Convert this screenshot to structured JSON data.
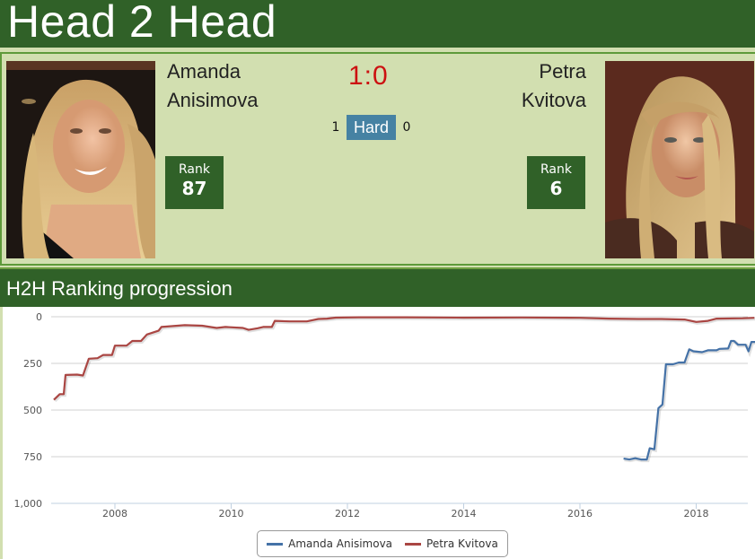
{
  "header": {
    "title": "Head 2 Head"
  },
  "h2h": {
    "player1": {
      "first": "Amanda",
      "last": "Anisimova",
      "rank_label": "Rank",
      "rank": "87",
      "surface_wins": "1",
      "photo": "player-photo-anisimova"
    },
    "player2": {
      "first": "Petra",
      "last": "Kvitova",
      "rank_label": "Rank",
      "rank": "6",
      "surface_wins": "0",
      "photo": "player-photo-kvitova"
    },
    "score": "1:0",
    "surface": "Hard"
  },
  "section": {
    "title": "H2H Ranking progression"
  },
  "colors": {
    "brand_green": "#306128",
    "panel_bg": "#d2dfb0",
    "score_red": "#cc1111",
    "surface_blue": "#4682a3",
    "series1": "#4572a7",
    "series2": "#aa4643"
  },
  "chart_data": {
    "type": "line",
    "title": "H2H Ranking progression",
    "xlabel": "",
    "ylabel": "",
    "y_reversed": true,
    "ylim": [
      0,
      1000
    ],
    "y_ticks": [
      "0",
      "250",
      "500",
      "750",
      "1,000"
    ],
    "x_ticks": [
      "2008",
      "2010",
      "2012",
      "2014",
      "2016",
      "2018"
    ],
    "grid": true,
    "legend_position": "bottom-center",
    "series": [
      {
        "name": "Amanda Anisimova",
        "color": "#4572a7",
        "points": [
          [
            2016.75,
            760
          ],
          [
            2016.85,
            765
          ],
          [
            2016.95,
            758
          ],
          [
            2017.05,
            765
          ],
          [
            2017.15,
            765
          ],
          [
            2017.2,
            705
          ],
          [
            2017.28,
            710
          ],
          [
            2017.35,
            490
          ],
          [
            2017.42,
            470
          ],
          [
            2017.48,
            255
          ],
          [
            2017.6,
            255
          ],
          [
            2017.7,
            245
          ],
          [
            2017.8,
            245
          ],
          [
            2017.88,
            175
          ],
          [
            2017.95,
            185
          ],
          [
            2018.1,
            190
          ],
          [
            2018.2,
            180
          ],
          [
            2018.35,
            180
          ],
          [
            2018.4,
            172
          ],
          [
            2018.55,
            170
          ],
          [
            2018.6,
            130
          ],
          [
            2018.65,
            130
          ],
          [
            2018.72,
            150
          ],
          [
            2018.85,
            150
          ],
          [
            2018.9,
            185
          ],
          [
            2018.95,
            135
          ],
          [
            2019.05,
            135
          ],
          [
            2019.1,
            96
          ],
          [
            2019.15,
            92
          ]
        ]
      },
      {
        "name": "Petra Kvitova",
        "color": "#aa4643",
        "points": [
          [
            2006.95,
            445
          ],
          [
            2007.05,
            415
          ],
          [
            2007.12,
            415
          ],
          [
            2007.15,
            312
          ],
          [
            2007.35,
            310
          ],
          [
            2007.45,
            315
          ],
          [
            2007.55,
            225
          ],
          [
            2007.7,
            222
          ],
          [
            2007.8,
            205
          ],
          [
            2007.95,
            205
          ],
          [
            2008.0,
            155
          ],
          [
            2008.2,
            155
          ],
          [
            2008.3,
            130
          ],
          [
            2008.45,
            130
          ],
          [
            2008.55,
            95
          ],
          [
            2008.75,
            75
          ],
          [
            2008.8,
            55
          ],
          [
            2009.0,
            50
          ],
          [
            2009.2,
            45
          ],
          [
            2009.5,
            48
          ],
          [
            2009.75,
            60
          ],
          [
            2009.9,
            55
          ],
          [
            2010.2,
            60
          ],
          [
            2010.3,
            70
          ],
          [
            2010.45,
            62
          ],
          [
            2010.55,
            55
          ],
          [
            2010.7,
            55
          ],
          [
            2010.75,
            22
          ],
          [
            2011.0,
            25
          ],
          [
            2011.3,
            25
          ],
          [
            2011.5,
            12
          ],
          [
            2011.65,
            10
          ],
          [
            2011.8,
            5
          ],
          [
            2012.2,
            3
          ],
          [
            2013.0,
            3
          ],
          [
            2014.0,
            5
          ],
          [
            2015.0,
            4
          ],
          [
            2016.0,
            6
          ],
          [
            2016.5,
            10
          ],
          [
            2017.0,
            12
          ],
          [
            2017.4,
            12
          ],
          [
            2017.8,
            15
          ],
          [
            2018.0,
            28
          ],
          [
            2018.2,
            22
          ],
          [
            2018.35,
            10
          ],
          [
            2018.8,
            8
          ],
          [
            2019.0,
            6
          ]
        ]
      }
    ]
  }
}
